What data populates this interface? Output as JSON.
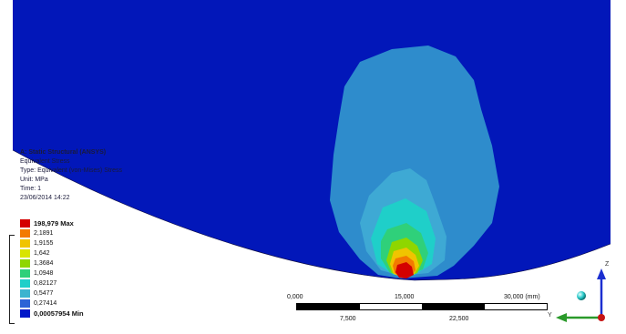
{
  "info": {
    "title": "A: Static Structural (ANSYS)",
    "line1": "Equivalent Stress",
    "line2": "Type: Equivalent (von-Mises) Stress",
    "line3": "Unit: MPa",
    "line4": "Time: 1",
    "line5": "23/06/2014 14:22"
  },
  "legend": [
    {
      "label": "198,979 Max",
      "color": "#d40000"
    },
    {
      "label": "2,1891",
      "color": "#f37a00"
    },
    {
      "label": "1,9155",
      "color": "#f0c400"
    },
    {
      "label": "1,642",
      "color": "#d9e400"
    },
    {
      "label": "1,3684",
      "color": "#8fd600"
    },
    {
      "label": "1,0948",
      "color": "#2fd07a"
    },
    {
      "label": "0,82127",
      "color": "#1fcfc9"
    },
    {
      "label": "0,5477",
      "color": "#3cb4cf"
    },
    {
      "label": "0,27414",
      "color": "#2b63d6"
    },
    {
      "label": "0,00057954 Min",
      "color": "#0017c8"
    }
  ],
  "scale": {
    "t0": "0,000",
    "t1": "15,000",
    "t2": "30,000 (mm)",
    "b1": "7,500",
    "b2": "22,500"
  },
  "triad": {
    "z": "Z",
    "y": "Y"
  },
  "colors": {
    "background_model": "#0217b9",
    "contour_outer": "#2e8ccc",
    "contour_mid": "#3ea9d4"
  }
}
